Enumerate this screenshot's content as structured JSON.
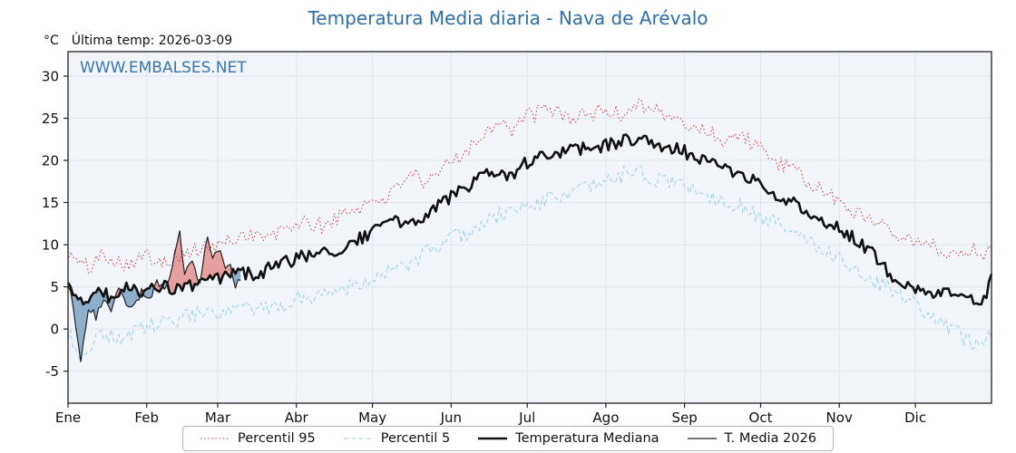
{
  "title": "Temperatura Media diaria - Nava de Arévalo",
  "watermark": "WWW.EMBALSES.NET",
  "header": {
    "unit_label": "°C",
    "last_temp_label": "Última temp: 2026-03-09"
  },
  "colors": {
    "title_blue": "#2d6da8",
    "watermark_blue": "#3a76b0",
    "p95_red": "#cc4444",
    "p5_blue": "#9fd0e6",
    "median_black": "#111111",
    "t2026_black": "#222222",
    "fill_above": "#e58f8f",
    "fill_below": "#7da3c4",
    "plot_bg": "#f1f5f9",
    "grid": "#dde4ec",
    "axis": "#222222"
  },
  "chart_data": {
    "type": "line",
    "title": "Temperatura Media diaria - Nava de Arévalo",
    "ylabel": "°C",
    "ylim": [
      -8.8,
      32.9
    ],
    "yticks": [
      -5,
      0,
      5,
      10,
      15,
      20,
      25,
      30
    ],
    "grid": true,
    "legend_position": "bottom-center",
    "months": [
      "Ene",
      "Feb",
      "Mar",
      "Abr",
      "May",
      "Jun",
      "Jul",
      "Ago",
      "Sep",
      "Oct",
      "Nov",
      "Dic"
    ],
    "month_start_days": [
      0,
      31,
      59,
      90,
      120,
      151,
      181,
      212,
      243,
      273,
      304,
      334
    ],
    "days_in_year": 365,
    "series": [
      {
        "name": "Percentil 95",
        "color": "#cc4444",
        "style": "dotted",
        "width": 1.1,
        "noise": 1.0,
        "seed": 101,
        "anchors": [
          [
            0,
            8.8
          ],
          [
            8,
            7.2
          ],
          [
            14,
            9.0
          ],
          [
            22,
            7.8
          ],
          [
            31,
            8.6
          ],
          [
            40,
            8.2
          ],
          [
            50,
            9.3
          ],
          [
            59,
            9.8
          ],
          [
            70,
            11.4
          ],
          [
            80,
            10.8
          ],
          [
            90,
            12.6
          ],
          [
            100,
            12.2
          ],
          [
            110,
            13.8
          ],
          [
            120,
            15.2
          ],
          [
            128,
            16.0
          ],
          [
            135,
            19.0
          ],
          [
            140,
            16.5
          ],
          [
            151,
            20.0
          ],
          [
            160,
            22.0
          ],
          [
            170,
            25.0
          ],
          [
            175,
            23.5
          ],
          [
            181,
            25.3
          ],
          [
            190,
            26.0
          ],
          [
            200,
            25.0
          ],
          [
            212,
            26.0
          ],
          [
            218,
            25.3
          ],
          [
            225,
            27.0
          ],
          [
            233,
            25.8
          ],
          [
            242,
            24.3
          ],
          [
            250,
            23.8
          ],
          [
            258,
            22.5
          ],
          [
            266,
            23.0
          ],
          [
            273,
            21.2
          ],
          [
            281,
            19.5
          ],
          [
            288,
            18.3
          ],
          [
            296,
            16.5
          ],
          [
            304,
            15.2
          ],
          [
            312,
            13.5
          ],
          [
            320,
            12.8
          ],
          [
            327,
            11.5
          ],
          [
            334,
            10.3
          ],
          [
            342,
            9.6
          ],
          [
            350,
            8.8
          ],
          [
            357,
            9.6
          ],
          [
            364,
            8.8
          ]
        ]
      },
      {
        "name": "Percentil 5",
        "color": "#9fd0e6",
        "style": "dashed",
        "width": 1.1,
        "noise": 1.0,
        "seed": 202,
        "anchors": [
          [
            0,
            -0.5
          ],
          [
            5,
            -3.5
          ],
          [
            12,
            -0.5
          ],
          [
            20,
            -1.2
          ],
          [
            31,
            0.3
          ],
          [
            40,
            0.8
          ],
          [
            50,
            1.8
          ],
          [
            59,
            1.5
          ],
          [
            70,
            2.5
          ],
          [
            80,
            2.2
          ],
          [
            90,
            3.6
          ],
          [
            100,
            4.2
          ],
          [
            110,
            5.0
          ],
          [
            120,
            6.2
          ],
          [
            130,
            7.0
          ],
          [
            140,
            8.8
          ],
          [
            151,
            10.6
          ],
          [
            160,
            11.8
          ],
          [
            170,
            13.5
          ],
          [
            181,
            14.6
          ],
          [
            190,
            15.5
          ],
          [
            200,
            16.2
          ],
          [
            212,
            17.4
          ],
          [
            222,
            18.8
          ],
          [
            230,
            17.8
          ],
          [
            242,
            17.3
          ],
          [
            252,
            15.8
          ],
          [
            262,
            15.0
          ],
          [
            273,
            13.4
          ],
          [
            283,
            11.8
          ],
          [
            293,
            10.4
          ],
          [
            304,
            8.4
          ],
          [
            314,
            6.5
          ],
          [
            324,
            4.6
          ],
          [
            334,
            3.0
          ],
          [
            342,
            1.2
          ],
          [
            350,
            -0.5
          ],
          [
            356,
            -1.5
          ],
          [
            364,
            -0.6
          ]
        ]
      },
      {
        "name": "Temperatura Mediana",
        "color": "#111111",
        "style": "solid",
        "width": 2.6,
        "noise": 0.8,
        "seed": 303,
        "anchors": [
          [
            0,
            4.8
          ],
          [
            6,
            3.2
          ],
          [
            12,
            4.6
          ],
          [
            18,
            3.6
          ],
          [
            24,
            5.0
          ],
          [
            31,
            4.4
          ],
          [
            38,
            5.0
          ],
          [
            45,
            4.6
          ],
          [
            52,
            5.6
          ],
          [
            59,
            5.8
          ],
          [
            66,
            6.8
          ],
          [
            74,
            6.4
          ],
          [
            82,
            7.6
          ],
          [
            90,
            8.2
          ],
          [
            98,
            9.4
          ],
          [
            106,
            9.0
          ],
          [
            114,
            10.6
          ],
          [
            120,
            11.4
          ],
          [
            127,
            13.2
          ],
          [
            134,
            12.2
          ],
          [
            142,
            13.8
          ],
          [
            151,
            15.8
          ],
          [
            158,
            17.0
          ],
          [
            166,
            18.4
          ],
          [
            174,
            17.8
          ],
          [
            181,
            19.8
          ],
          [
            189,
            20.6
          ],
          [
            197,
            21.0
          ],
          [
            205,
            21.6
          ],
          [
            212,
            21.8
          ],
          [
            220,
            22.4
          ],
          [
            228,
            22.6
          ],
          [
            236,
            21.6
          ],
          [
            243,
            21.0
          ],
          [
            251,
            20.2
          ],
          [
            259,
            18.8
          ],
          [
            267,
            18.2
          ],
          [
            273,
            17.0
          ],
          [
            281,
            15.6
          ],
          [
            289,
            14.4
          ],
          [
            297,
            13.0
          ],
          [
            304,
            11.8
          ],
          [
            311,
            10.6
          ],
          [
            318,
            8.6
          ],
          [
            325,
            6.4
          ],
          [
            331,
            5.4
          ],
          [
            338,
            4.6
          ],
          [
            345,
            4.2
          ],
          [
            352,
            3.6
          ],
          [
            358,
            3.2
          ],
          [
            362,
            4.0
          ],
          [
            364,
            6.2
          ]
        ]
      },
      {
        "name": "T. Media 2026",
        "color": "#222222",
        "style": "solid",
        "width": 1.2,
        "noise": 0.5,
        "seed": 404,
        "range": [
          0,
          68
        ],
        "anchors": [
          [
            0,
            5.2
          ],
          [
            2,
            3.0
          ],
          [
            5,
            -4.0
          ],
          [
            8,
            2.5
          ],
          [
            11,
            1.5
          ],
          [
            14,
            3.5
          ],
          [
            17,
            2.0
          ],
          [
            20,
            5.0
          ],
          [
            23,
            3.0
          ],
          [
            26,
            2.5
          ],
          [
            29,
            4.5
          ],
          [
            32,
            3.5
          ],
          [
            35,
            5.5
          ],
          [
            38,
            4.5
          ],
          [
            41,
            7.0
          ],
          [
            44,
            11.5
          ],
          [
            46,
            6.5
          ],
          [
            49,
            8.0
          ],
          [
            52,
            5.5
          ],
          [
            55,
            11.0
          ],
          [
            57,
            8.5
          ],
          [
            60,
            9.0
          ],
          [
            62,
            7.0
          ],
          [
            64,
            8.0
          ],
          [
            66,
            5.0
          ],
          [
            68,
            5.8
          ]
        ]
      }
    ],
    "fills": {
      "base_series": "Temperatura Mediana",
      "compare_series": "T. Media 2026",
      "above_color": "#e58f8f",
      "below_color": "#7da3c4"
    }
  },
  "legend": {
    "items": [
      "Percentil 95",
      "Percentil 5",
      "Temperatura Mediana",
      "T. Media 2026"
    ]
  }
}
